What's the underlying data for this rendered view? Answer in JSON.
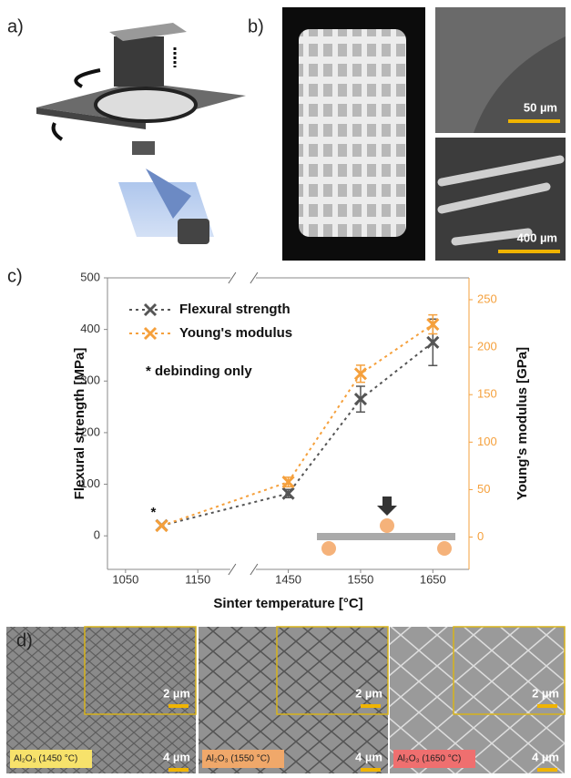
{
  "panels": {
    "a": "a)",
    "b": "b)",
    "c": "c)",
    "d": "d)",
    "b_scales": [
      "50 µm",
      "400 µm"
    ],
    "d_images": [
      {
        "label": "Al₂O₃ (1450 °C)",
        "inset_scale": "2 µm",
        "scale": "4 µm"
      },
      {
        "label": "Al₂O₃ (1550 °C)",
        "inset_scale": "2 µm",
        "scale": "4 µm"
      },
      {
        "label": "Al₂O₃ (1650 °C)",
        "inset_scale": "2 µm",
        "scale": "4 µm"
      }
    ]
  },
  "chart_data": {
    "type": "line",
    "xlabel": "Sinter temperature [°C]",
    "ylabel": "Flexural strength [MPa]",
    "y2label": "Young's modulus [GPa]",
    "x": [
      1100,
      1450,
      1550,
      1650
    ],
    "xlim": [
      1025,
      1700
    ],
    "xbreak": [
      1200,
      1400
    ],
    "xticks": [
      1050,
      1150,
      1450,
      1550,
      1650
    ],
    "ylim": [
      -65,
      500
    ],
    "yticks": [
      0,
      100,
      200,
      300,
      400,
      500
    ],
    "y2lim": [
      -34,
      273
    ],
    "y2ticks": [
      0,
      50,
      100,
      150,
      200,
      250
    ],
    "series": [
      {
        "name": "Flexural strength",
        "color": "#555555",
        "values": [
          20,
          82,
          265,
          375
        ],
        "errors": [
          null,
          8,
          25,
          45
        ]
      },
      {
        "name": "Young's modulus",
        "color": "#f5a03c",
        "axis": "y2",
        "values": [
          12,
          58,
          172,
          224
        ],
        "errors": [
          null,
          5,
          9,
          10
        ]
      }
    ],
    "annotations": [
      "* debinding only",
      "*"
    ]
  }
}
